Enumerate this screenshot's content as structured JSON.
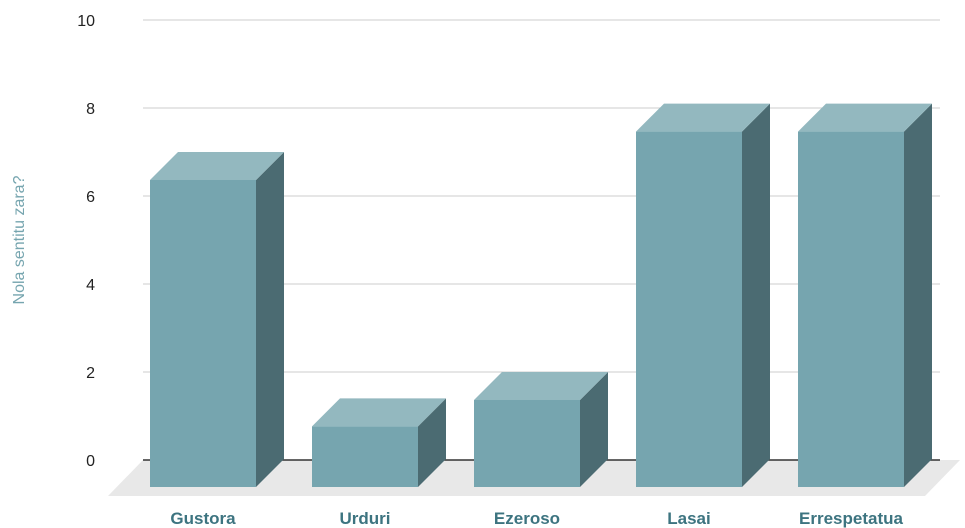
{
  "chart_data": {
    "type": "bar",
    "title": "",
    "xlabel": "",
    "ylabel": "Nola sentitu zara?",
    "categories": [
      "Gustora",
      "Urduri",
      "Ezeroso",
      "Lasai",
      "Errespetatua"
    ],
    "values": [
      7,
      1.4,
      2,
      8.1,
      8.1
    ],
    "ylim": [
      0,
      10
    ],
    "yticks": [
      0,
      2,
      4,
      6,
      8,
      10
    ],
    "grid": true,
    "legend": "none",
    "style": "3d-column"
  },
  "colors": {
    "bar_front": "#76a5af",
    "bar_top": "#93b8bf",
    "bar_side": "#4b6b72",
    "floor": "#e8e8e8",
    "gridline": "#cccccc",
    "baseline": "#333333",
    "category_label": "#3d7480",
    "axis_title": "#76a5af"
  }
}
